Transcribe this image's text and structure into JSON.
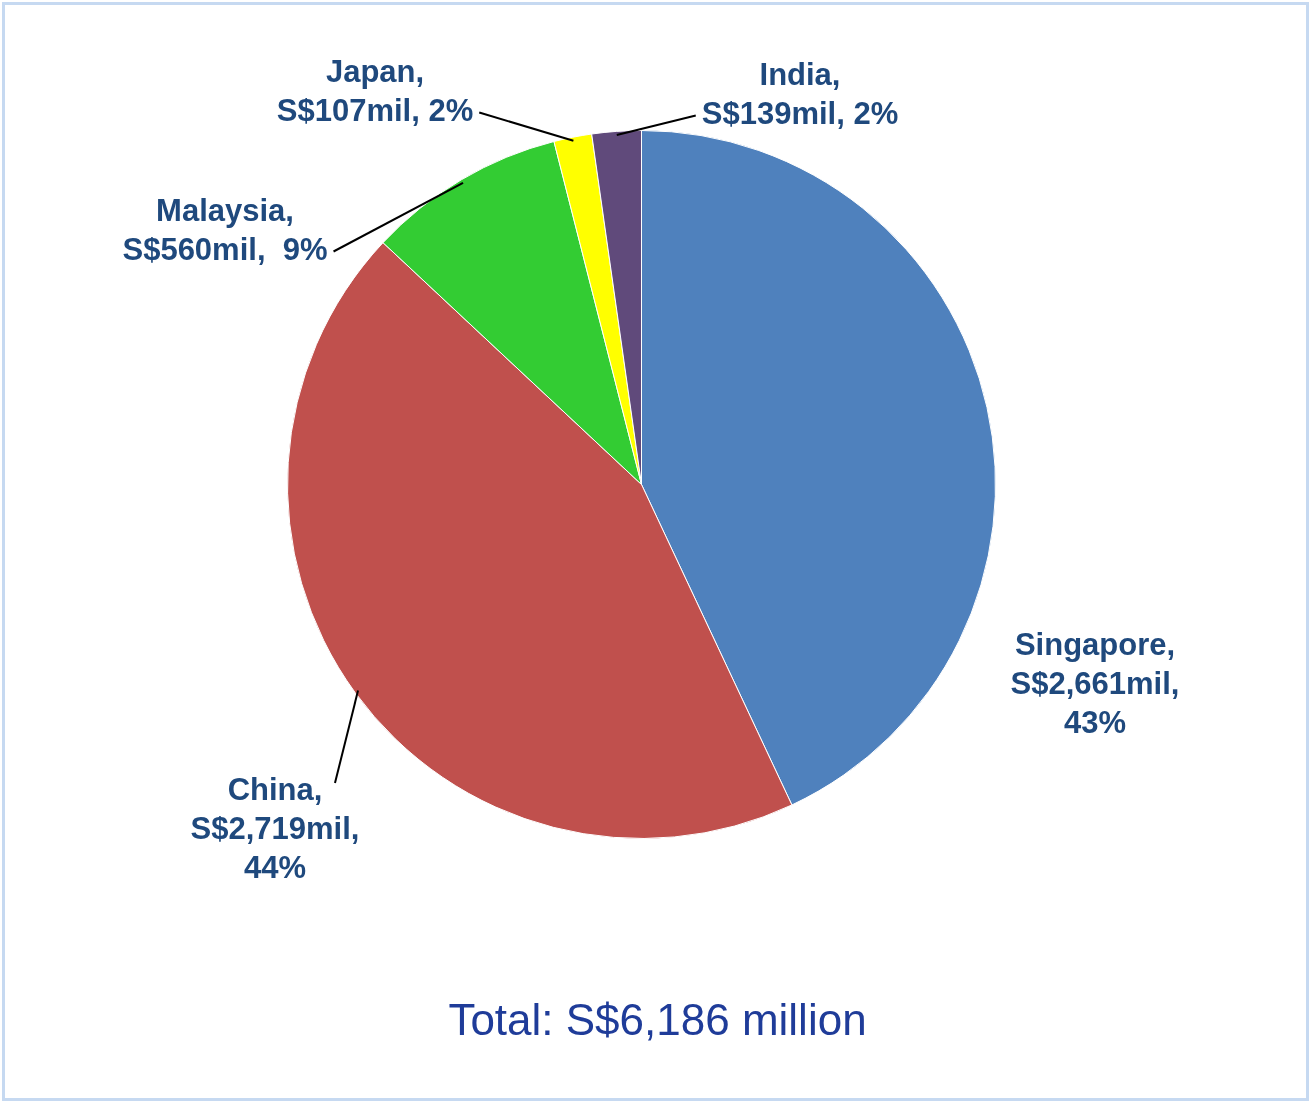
{
  "chart_data": {
    "type": "pie",
    "categories": [
      "Singapore",
      "China",
      "Malaysia",
      "Japan",
      "India"
    ],
    "values": [
      2661,
      2719,
      560,
      107,
      139
    ],
    "colors": [
      "#4f81bd",
      "#c0504d",
      "#33cc33",
      "#ffff00",
      "#604a7b"
    ],
    "value_labels": [
      ", S$2,661mil, 43%",
      ", S$2,719mil, 44%",
      ", S$560mil,  9%",
      ", S$107mil, 2%",
      ", S$139mil, 2%"
    ],
    "annotations": [
      "Total: S$6,186 million"
    ],
    "legend": false
  }
}
